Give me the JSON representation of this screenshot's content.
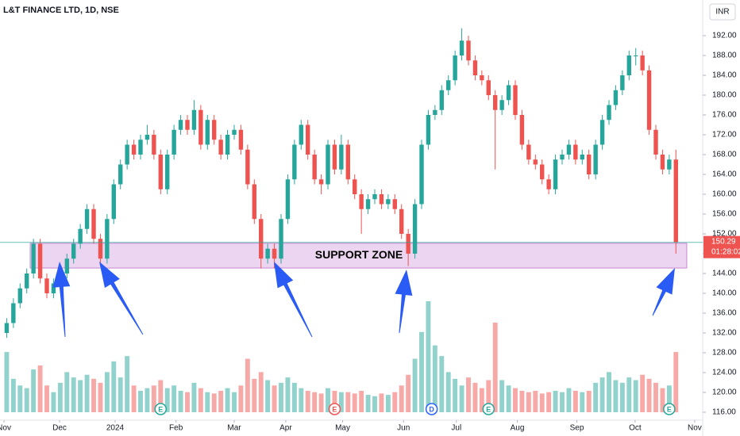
{
  "chart_data": {
    "type": "candlestick",
    "title": "L&T FINANCE LTD, 1D, NSE",
    "currency": "INR",
    "ohlc": [
      [
        132,
        135,
        131,
        134
      ],
      [
        134,
        139,
        133,
        138
      ],
      [
        138,
        142,
        137,
        141
      ],
      [
        141,
        145,
        140,
        144
      ],
      [
        144,
        151,
        143,
        150
      ],
      [
        150,
        151,
        142,
        143
      ],
      [
        143,
        144,
        139,
        140
      ],
      [
        140,
        143,
        139,
        142
      ],
      [
        142,
        145,
        141,
        144
      ],
      [
        144,
        148,
        143,
        147
      ],
      [
        147,
        151,
        146,
        150
      ],
      [
        150,
        154,
        149,
        153
      ],
      [
        153,
        158,
        152,
        157
      ],
      [
        157,
        158,
        150,
        151
      ],
      [
        151,
        152,
        146,
        147
      ],
      [
        147,
        156,
        146,
        155
      ],
      [
        155,
        163,
        154,
        162
      ],
      [
        162,
        167,
        161,
        166
      ],
      [
        166,
        171,
        165,
        170
      ],
      [
        170,
        171,
        167,
        168
      ],
      [
        168,
        172,
        167,
        171
      ],
      [
        171,
        174,
        170,
        172
      ],
      [
        172,
        173,
        167,
        168
      ],
      [
        168,
        169,
        160,
        161
      ],
      [
        161,
        169,
        160,
        168
      ],
      [
        168,
        174,
        167,
        173
      ],
      [
        173,
        176,
        172,
        175
      ],
      [
        175,
        176,
        172,
        173
      ],
      [
        173,
        179,
        172,
        177
      ],
      [
        177,
        178,
        169,
        170
      ],
      [
        170,
        176,
        169,
        175
      ],
      [
        175,
        176,
        170,
        171
      ],
      [
        171,
        172,
        167,
        168
      ],
      [
        168,
        173,
        167,
        172
      ],
      [
        172,
        174,
        171,
        173
      ],
      [
        173,
        174,
        168,
        169
      ],
      [
        169,
        170,
        161,
        162
      ],
      [
        162,
        163,
        154,
        155
      ],
      [
        155,
        156,
        145,
        147
      ],
      [
        147,
        150,
        146,
        149
      ],
      [
        149,
        150,
        145,
        147
      ],
      [
        147,
        156,
        146,
        155
      ],
      [
        155,
        164,
        154,
        163
      ],
      [
        163,
        171,
        162,
        170
      ],
      [
        170,
        175,
        169,
        174
      ],
      [
        174,
        175,
        167,
        168
      ],
      [
        168,
        169,
        162,
        163
      ],
      [
        163,
        164,
        160,
        162
      ],
      [
        162,
        171,
        161,
        170
      ],
      [
        170,
        171,
        164,
        165
      ],
      [
        165,
        172,
        164,
        170
      ],
      [
        170,
        171,
        162,
        163
      ],
      [
        163,
        164,
        159,
        160
      ],
      [
        160,
        161,
        152,
        157
      ],
      [
        157,
        160,
        156,
        159
      ],
      [
        159,
        161,
        158,
        160
      ],
      [
        160,
        161,
        157,
        158
      ],
      [
        158,
        160,
        157,
        159
      ],
      [
        159,
        160,
        156,
        157
      ],
      [
        157,
        158,
        151,
        152
      ],
      [
        152,
        153,
        145.5,
        148
      ],
      [
        148,
        159,
        147,
        158
      ],
      [
        158,
        171,
        157,
        170
      ],
      [
        170,
        177,
        169,
        176
      ],
      [
        176,
        178,
        175,
        177
      ],
      [
        177,
        182,
        176,
        181
      ],
      [
        181,
        184,
        180,
        183
      ],
      [
        183,
        189,
        182,
        188
      ],
      [
        188,
        193.5,
        187,
        191
      ],
      [
        191,
        192,
        186,
        187
      ],
      [
        187,
        188,
        183,
        184
      ],
      [
        184,
        185,
        182,
        183
      ],
      [
        183,
        184,
        179,
        180
      ],
      [
        180,
        181,
        165,
        177
      ],
      [
        177,
        180,
        176,
        179
      ],
      [
        179,
        183,
        178,
        182
      ],
      [
        182,
        183,
        175,
        176
      ],
      [
        176,
        177,
        169,
        170
      ],
      [
        170,
        171,
        166,
        167
      ],
      [
        167,
        168,
        165,
        166
      ],
      [
        166,
        167,
        162,
        163
      ],
      [
        163,
        164,
        160,
        161
      ],
      [
        161,
        168,
        160,
        167
      ],
      [
        167,
        169,
        166,
        168
      ],
      [
        168,
        171,
        167,
        170
      ],
      [
        170,
        171,
        166,
        167
      ],
      [
        167,
        169,
        166,
        168
      ],
      [
        168,
        169,
        163,
        164
      ],
      [
        164,
        171,
        163,
        170
      ],
      [
        170,
        176,
        169,
        175
      ],
      [
        175,
        179,
        174,
        178
      ],
      [
        178,
        182,
        177,
        181
      ],
      [
        181,
        185,
        180,
        184
      ],
      [
        184,
        189,
        183,
        188
      ],
      [
        188,
        189.5,
        186,
        188
      ],
      [
        188,
        189,
        184,
        185
      ],
      [
        185,
        186,
        172,
        173
      ],
      [
        173,
        174,
        167,
        168
      ],
      [
        168,
        169,
        164,
        165
      ],
      [
        165,
        168,
        164,
        167
      ],
      [
        167,
        169,
        148,
        150.29
      ]
    ],
    "volumes": [
      4.5,
      2.5,
      2,
      1.8,
      3.2,
      3.5,
      2,
      1.5,
      2.2,
      3,
      2.6,
      2.4,
      2.8,
      2.5,
      2.2,
      3,
      3.8,
      2.6,
      4.2,
      2,
      1.6,
      1.8,
      2,
      2.4,
      1.8,
      2,
      1.6,
      1.5,
      2.2,
      1.8,
      1.5,
      1.4,
      1.6,
      1.8,
      1.5,
      2,
      4,
      2.5,
      3,
      2.4,
      2,
      2.2,
      2.6,
      2.2,
      1.8,
      1.6,
      1.5,
      1.4,
      1.8,
      1.6,
      1.5,
      1.5,
      1.4,
      1.6,
      1.3,
      1.2,
      1.4,
      1.3,
      1.5,
      2,
      2.8,
      4,
      6,
      8.3,
      5,
      4.2,
      3,
      2.5,
      2,
      2.6,
      2.2,
      1.8,
      2.4,
      6.7,
      2.4,
      2,
      1.8,
      1.6,
      1.5,
      1.6,
      1.4,
      1.5,
      1.6,
      1.5,
      1.8,
      1.6,
      1.5,
      1.6,
      2.2,
      2.6,
      3,
      2.4,
      2.2,
      2.6,
      2.4,
      2.8,
      2.5,
      2.2,
      1.8,
      2,
      4.5
    ],
    "xlim": [
      -1,
      104
    ],
    "xticks": [
      {
        "value": -0.4,
        "label": "Nov"
      },
      {
        "value": 7.9,
        "label": "Dec"
      },
      {
        "value": 16.2,
        "label": "2024"
      },
      {
        "value": 25.3,
        "label": "Feb"
      },
      {
        "value": 34,
        "label": "Mar"
      },
      {
        "value": 41.7,
        "label": "Apr"
      },
      {
        "value": 50.2,
        "label": "May"
      },
      {
        "value": 59.3,
        "label": "Jun"
      },
      {
        "value": 67.2,
        "label": "Jul"
      },
      {
        "value": 76.3,
        "label": "Aug"
      },
      {
        "value": 85.2,
        "label": "Sep"
      },
      {
        "value": 93.9,
        "label": "Oct"
      },
      {
        "value": 102.8,
        "label": "Nov"
      }
    ],
    "ylim": [
      114.4,
      199.2
    ],
    "yticks": [
      {
        "value": 116,
        "label": "116.00"
      },
      {
        "value": 120,
        "label": "120.00"
      },
      {
        "value": 124,
        "label": "124.00"
      },
      {
        "value": 128,
        "label": "128.00"
      },
      {
        "value": 132,
        "label": "132.00"
      },
      {
        "value": 136,
        "label": "136.00"
      },
      {
        "value": 140,
        "label": "140.00"
      },
      {
        "value": 144,
        "label": "144.00"
      },
      {
        "value": 148,
        "label": "148.00"
      },
      {
        "value": 152,
        "label": "152.00"
      },
      {
        "value": 156,
        "label": "156.00"
      },
      {
        "value": 160,
        "label": "160.00"
      },
      {
        "value": 164,
        "label": "164.00"
      },
      {
        "value": 168,
        "label": "168.00"
      },
      {
        "value": 172,
        "label": "172.00"
      },
      {
        "value": 176,
        "label": "176.00"
      },
      {
        "value": 180,
        "label": "180.00"
      },
      {
        "value": 184,
        "label": "184.00"
      },
      {
        "value": 188,
        "label": "188.00"
      },
      {
        "value": 192,
        "label": "192.00"
      }
    ],
    "last_price": 150.29,
    "countdown": "01:28:02",
    "support_zone": {
      "low": 145.1,
      "high": 150.1,
      "label": "SUPPORT ZONE"
    },
    "events": [
      {
        "index": 23,
        "label": "E"
      },
      {
        "index": 49,
        "label": "E"
      },
      {
        "index": 63.5,
        "label": "D"
      },
      {
        "index": 72,
        "label": "E"
      },
      {
        "index": 99,
        "label": "E"
      }
    ],
    "up_color": "#26a69a",
    "down_color": "#ef5350",
    "grid": false
  }
}
